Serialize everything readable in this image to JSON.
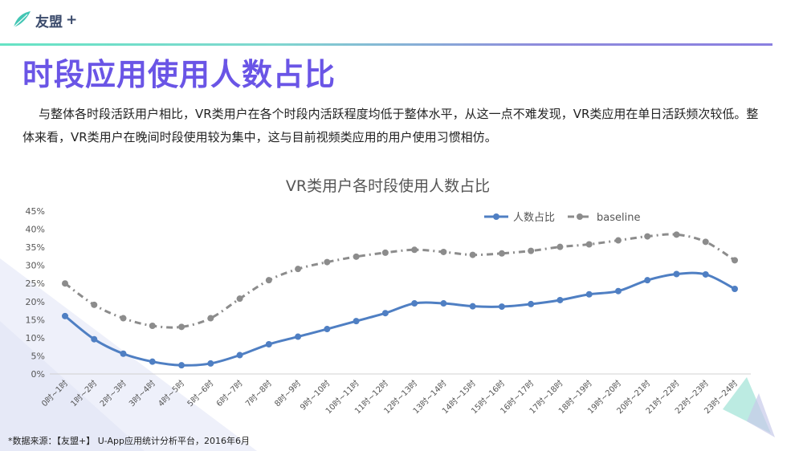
{
  "brand": {
    "name": "友盟",
    "plus": "+"
  },
  "header": {
    "title": "时段应用使用人数占比"
  },
  "body_text": "与整体各时段活跃用户相比，VR类用户在各个时段内活跃程度均低于整体水平，从这一点不难发现，VR类应用在单日活跃频次较低。整体来看，VR类用户在晚间时段使用较为集中，这与目前视频类应用的用户使用习惯相仿。",
  "footer": {
    "source": "*数据来源：【友盟+】 U-App应用统计分析平台，2016年6月"
  },
  "colors": {
    "accent": "#6a55e6",
    "series1": "#4f7fc3",
    "series2": "#8c8c8c"
  },
  "chart_data": {
    "type": "line",
    "title": "VR类用户各时段使用人数占比",
    "categories": [
      "0时~1时",
      "1时~2时",
      "2时~3时",
      "3时~4时",
      "4时~5时",
      "5时~6时",
      "6时~7时",
      "7时~8时",
      "8时~9时",
      "9时~10时",
      "10时~11时",
      "11时~12时",
      "12时~13时",
      "13时~14时",
      "14时~15时",
      "15时~16时",
      "16时~17时",
      "17时~18时",
      "18时~19时",
      "19时~20时",
      "20时~21时",
      "21时~22时",
      "22时~23时",
      "23时~24时"
    ],
    "series": [
      {
        "name": "人数占比",
        "values": [
          16,
          9.6,
          5.6,
          3.4,
          2.4,
          2.9,
          5.2,
          8.2,
          10.3,
          12.4,
          14.6,
          16.8,
          19.5,
          19.5,
          18.7,
          18.6,
          19.3,
          20.4,
          22,
          22.9,
          25.9,
          27.6,
          27.5,
          23.5
        ]
      },
      {
        "name": "baseline",
        "values": [
          25,
          19.1,
          15.4,
          13.3,
          13,
          15.4,
          20.8,
          25.9,
          29,
          30.9,
          32.4,
          33.5,
          34.3,
          33.7,
          32.9,
          33.3,
          34,
          35.1,
          35.8,
          36.9,
          38,
          38.5,
          36.5,
          31.4
        ]
      }
    ],
    "yticks": [
      "0%",
      "5%",
      "10%",
      "15%",
      "20%",
      "25%",
      "30%",
      "35%",
      "40%",
      "45%"
    ],
    "ylim": [
      0,
      45
    ],
    "legend": "top-right",
    "grid": false
  }
}
